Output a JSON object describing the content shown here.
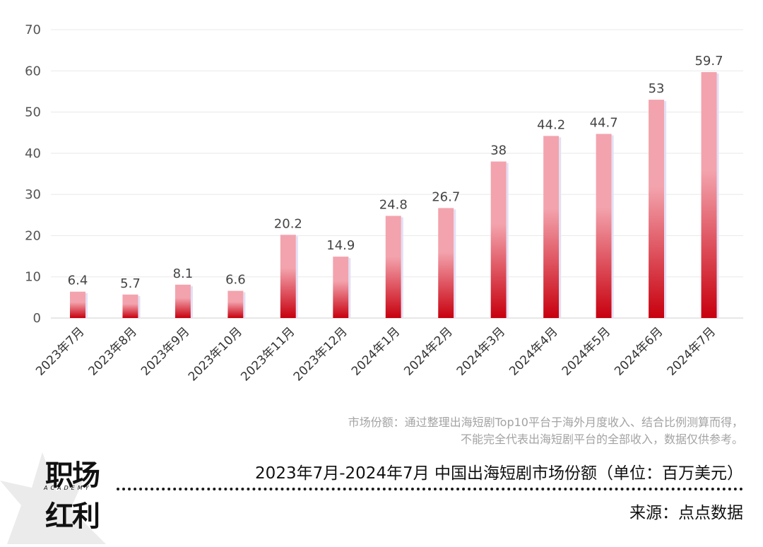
{
  "chart_data": {
    "type": "bar",
    "categories": [
      "2023年7月",
      "2023年8月",
      "2023年9月",
      "2023年10月",
      "2023年11月",
      "2023年12月",
      "2024年1月",
      "2024年2月",
      "2024年3月",
      "2024年4月",
      "2024年5月",
      "2024年6月",
      "2024年7月"
    ],
    "values": [
      6.4,
      5.7,
      8.1,
      6.6,
      20.2,
      14.9,
      24.8,
      26.7,
      38,
      44.2,
      44.7,
      53,
      59.7
    ],
    "data_labels": [
      "6.4",
      "5.7",
      "8.1",
      "6.6",
      "20.2",
      "14.9",
      "24.8",
      "26.7",
      "38",
      "44.2",
      "44.7",
      "53",
      "59.7"
    ],
    "yticks": [
      0,
      10,
      20,
      30,
      40,
      50,
      60,
      70
    ],
    "ylim": [
      0,
      70
    ],
    "grid": true,
    "bar_color_top": "#f3a3ad",
    "bar_color_bottom": "#c8000e"
  },
  "note": {
    "line1": "市场份额：通过整理出海短剧Top10平台于海外月度收入、结合比例测算而得，",
    "line2": "不能完全代表出海短剧平台的全部收入，数据仅供参考。"
  },
  "title": "2023年7月-2024年7月 中国出海短剧市场份额（单位：百万美元）",
  "source": "来源：点点数据",
  "logo": {
    "line1": "职场",
    "line2": "红利",
    "sub": "ACADEMY"
  }
}
